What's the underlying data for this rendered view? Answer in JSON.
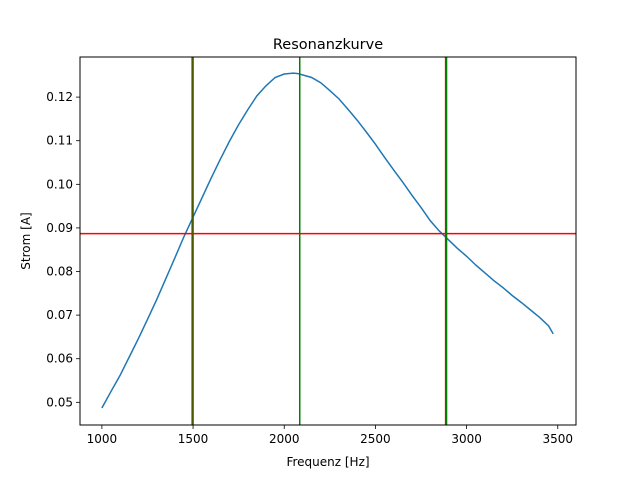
{
  "chart_data": {
    "type": "line",
    "title": "Resonanzkurve",
    "xlabel": "Frequenz [Hz]",
    "ylabel": "Strom [A]",
    "xlim": [
      880,
      3600
    ],
    "ylim": [
      0.0448,
      0.1292
    ],
    "xticks": [
      1000,
      1500,
      2000,
      2500,
      3000,
      3500
    ],
    "yticks": [
      0.05,
      0.06,
      0.07,
      0.08,
      0.09,
      0.1,
      0.11,
      0.12
    ],
    "ytick_labels": [
      "0.05",
      "0.06",
      "0.07",
      "0.08",
      "0.09",
      "0.10",
      "0.11",
      "0.12"
    ],
    "grid": false,
    "series": [
      {
        "color": "#1f77b4",
        "x": [
          1000,
          1050,
          1100,
          1150,
          1200,
          1250,
          1300,
          1350,
          1400,
          1450,
          1500,
          1550,
          1600,
          1650,
          1700,
          1750,
          1800,
          1850,
          1900,
          1950,
          2000,
          2050,
          2075,
          2100,
          2150,
          2200,
          2250,
          2300,
          2350,
          2400,
          2450,
          2500,
          2550,
          2600,
          2650,
          2700,
          2750,
          2800,
          2850,
          2900,
          2950,
          3000,
          3050,
          3100,
          3150,
          3200,
          3250,
          3300,
          3350,
          3400,
          3450,
          3475
        ],
        "y": [
          0.0487,
          0.0525,
          0.0562,
          0.0604,
          0.0646,
          0.069,
          0.0735,
          0.0783,
          0.0831,
          0.088,
          0.0925,
          0.097,
          0.1015,
          0.1058,
          0.1099,
          0.1137,
          0.1171,
          0.1203,
          0.1226,
          0.1245,
          0.1253,
          0.1255,
          0.1254,
          0.1251,
          0.1245,
          0.1233,
          0.1215,
          0.1196,
          0.1172,
          0.1147,
          0.112,
          0.1092,
          0.1062,
          0.1033,
          0.1005,
          0.0975,
          0.0947,
          0.0917,
          0.0893,
          0.0873,
          0.0853,
          0.0835,
          0.0815,
          0.0797,
          0.0779,
          0.0763,
          0.0745,
          0.0729,
          0.0712,
          0.0695,
          0.0675,
          0.0657
        ]
      }
    ],
    "hlines": [
      {
        "y": 0.0887,
        "color": "#ff0000"
      }
    ],
    "vlines": [
      {
        "x": 1495,
        "color": "#ff0000"
      },
      {
        "x": 1500,
        "color": "#008000"
      },
      {
        "x": 2085,
        "color": "#008000"
      },
      {
        "x": 2885,
        "color": "#ff0000"
      },
      {
        "x": 2890,
        "color": "#008000"
      }
    ]
  }
}
